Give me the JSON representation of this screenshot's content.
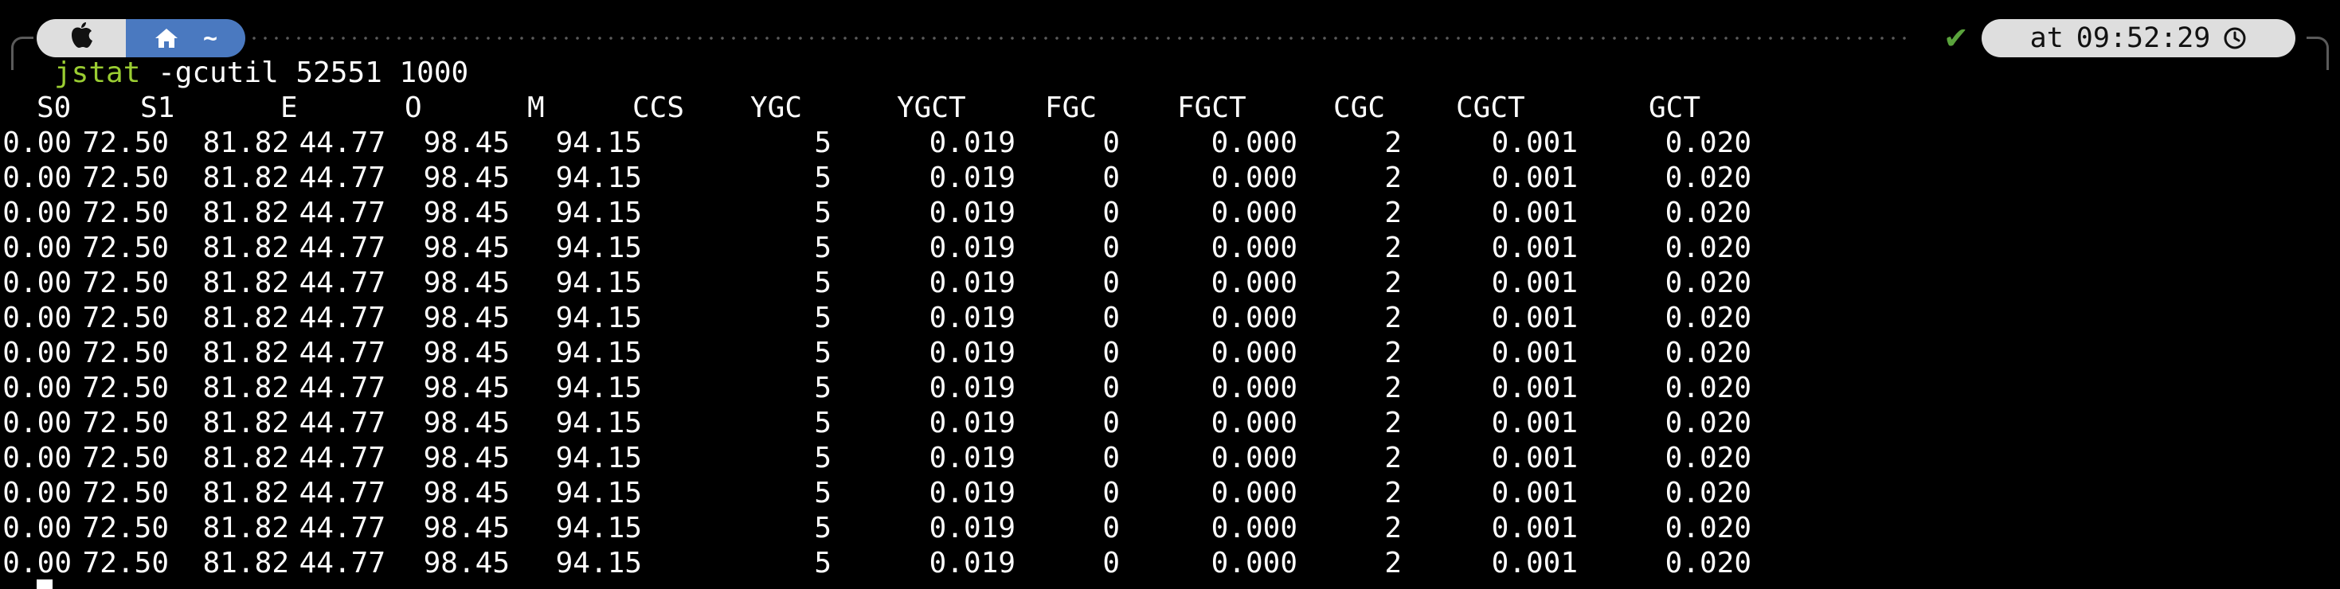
{
  "prompt": {
    "os_icon": "apple-icon",
    "home_icon": "home-icon",
    "directory": "~",
    "status_icon": "check-icon",
    "time_prefix": "at",
    "time": "09:52:29",
    "clock_icon": "clock-icon",
    "colors": {
      "os_segment": "#dedede",
      "dir_segment": "#4a79c0",
      "status_ok": "#5aa33c",
      "command": "#9acd32"
    }
  },
  "command": {
    "name": "jstat",
    "args": "-gcutil 52551 1000"
  },
  "table": {
    "headers": [
      "S0",
      "S1",
      "E",
      "O",
      "M",
      "CCS",
      "YGC",
      "YGCT",
      "FGC",
      "FGCT",
      "CGC",
      "CGCT",
      "GCT"
    ],
    "rows": [
      [
        "0.00",
        "72.50",
        "81.82",
        "44.77",
        "98.45",
        "94.15",
        "5",
        "0.019",
        "0",
        "0.000",
        "2",
        "0.001",
        "0.020"
      ],
      [
        "0.00",
        "72.50",
        "81.82",
        "44.77",
        "98.45",
        "94.15",
        "5",
        "0.019",
        "0",
        "0.000",
        "2",
        "0.001",
        "0.020"
      ],
      [
        "0.00",
        "72.50",
        "81.82",
        "44.77",
        "98.45",
        "94.15",
        "5",
        "0.019",
        "0",
        "0.000",
        "2",
        "0.001",
        "0.020"
      ],
      [
        "0.00",
        "72.50",
        "81.82",
        "44.77",
        "98.45",
        "94.15",
        "5",
        "0.019",
        "0",
        "0.000",
        "2",
        "0.001",
        "0.020"
      ],
      [
        "0.00",
        "72.50",
        "81.82",
        "44.77",
        "98.45",
        "94.15",
        "5",
        "0.019",
        "0",
        "0.000",
        "2",
        "0.001",
        "0.020"
      ],
      [
        "0.00",
        "72.50",
        "81.82",
        "44.77",
        "98.45",
        "94.15",
        "5",
        "0.019",
        "0",
        "0.000",
        "2",
        "0.001",
        "0.020"
      ],
      [
        "0.00",
        "72.50",
        "81.82",
        "44.77",
        "98.45",
        "94.15",
        "5",
        "0.019",
        "0",
        "0.000",
        "2",
        "0.001",
        "0.020"
      ],
      [
        "0.00",
        "72.50",
        "81.82",
        "44.77",
        "98.45",
        "94.15",
        "5",
        "0.019",
        "0",
        "0.000",
        "2",
        "0.001",
        "0.020"
      ],
      [
        "0.00",
        "72.50",
        "81.82",
        "44.77",
        "98.45",
        "94.15",
        "5",
        "0.019",
        "0",
        "0.000",
        "2",
        "0.001",
        "0.020"
      ],
      [
        "0.00",
        "72.50",
        "81.82",
        "44.77",
        "98.45",
        "94.15",
        "5",
        "0.019",
        "0",
        "0.000",
        "2",
        "0.001",
        "0.020"
      ],
      [
        "0.00",
        "72.50",
        "81.82",
        "44.77",
        "98.45",
        "94.15",
        "5",
        "0.019",
        "0",
        "0.000",
        "2",
        "0.001",
        "0.020"
      ],
      [
        "0.00",
        "72.50",
        "81.82",
        "44.77",
        "98.45",
        "94.15",
        "5",
        "0.019",
        "0",
        "0.000",
        "2",
        "0.001",
        "0.020"
      ],
      [
        "0.00",
        "72.50",
        "81.82",
        "44.77",
        "98.45",
        "94.15",
        "5",
        "0.019",
        "0",
        "0.000",
        "2",
        "0.001",
        "0.020"
      ]
    ]
  }
}
